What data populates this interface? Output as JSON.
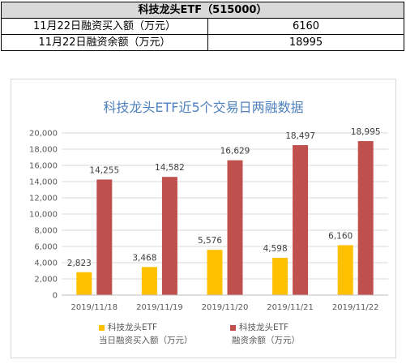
{
  "table": {
    "header": "科技龙头ETF（515000）",
    "rows": [
      {
        "label": "11月22日融资买入额（万元）",
        "value": "6160"
      },
      {
        "label": "11月22日融资余额（万元）",
        "value": "18995"
      }
    ]
  },
  "chart_data": {
    "type": "bar",
    "title": "科技龙头ETF近5个交易日两融数据",
    "categories": [
      "2019/11/18",
      "2019/11/19",
      "2019/11/20",
      "2019/11/21",
      "2019/11/22"
    ],
    "series": [
      {
        "name": "科技龙头ETF 当日融资买入额（万元）",
        "legend_line1": "科技龙头ETF",
        "legend_line2": "当日融资买入额（万元）",
        "color": "#ffc000",
        "values": [
          2823,
          3468,
          5576,
          4598,
          6160
        ],
        "labels": [
          "2,823",
          "3,468",
          "5,576",
          "4,598",
          "6,160"
        ]
      },
      {
        "name": "科技龙头ETF 融资余额（万元）",
        "legend_line1": "科技龙头ETF",
        "legend_line2": "融资余额（万元）",
        "color": "#c0504d",
        "values": [
          14255,
          14582,
          16629,
          18497,
          18995
        ],
        "labels": [
          "14,255",
          "14,582",
          "16,629",
          "18,497",
          "18,995"
        ]
      }
    ],
    "ylim": [
      0,
      20000
    ],
    "yticks": [
      0,
      2000,
      4000,
      6000,
      8000,
      10000,
      12000,
      14000,
      16000,
      18000,
      20000
    ],
    "ytick_labels": [
      "0",
      "2,000",
      "4,000",
      "6,000",
      "8,000",
      "10,000",
      "12,000",
      "14,000",
      "16,000",
      "18,000",
      "20,000"
    ],
    "grid": true,
    "legend_position": "bottom"
  }
}
